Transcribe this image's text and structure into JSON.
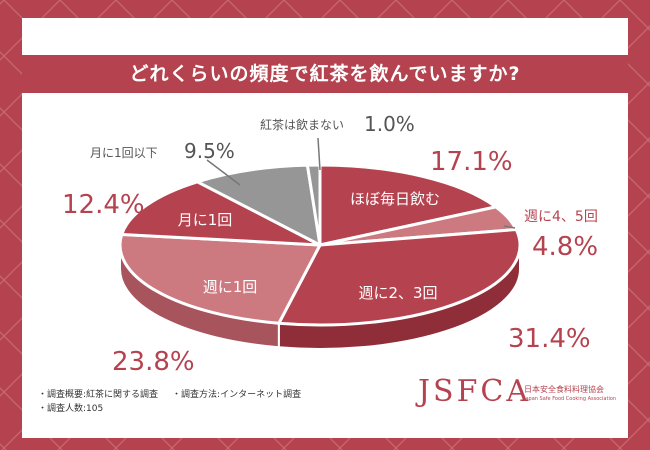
{
  "title": "どれくらいの頻度で紅茶を飲んでいますか?",
  "chart_data": {
    "type": "pie",
    "slices": [
      {
        "label": "ほぼ毎日飲む",
        "value": 17.1,
        "value_label": "17.1%",
        "color": "#b5434f"
      },
      {
        "label": "週に4、5回",
        "value": 4.8,
        "value_label": "4.8%",
        "color": "#cc7a80"
      },
      {
        "label": "週に2、3回",
        "value": 31.4,
        "value_label": "31.4%",
        "color": "#b5434f"
      },
      {
        "label": "週に1回",
        "value": 23.8,
        "value_label": "23.8%",
        "color": "#cc7a80"
      },
      {
        "label": "月に1回",
        "value": 12.4,
        "value_label": "12.4%",
        "color": "#b5434f"
      },
      {
        "label": "月に1回以下",
        "value": 9.5,
        "value_label": "9.5%",
        "color": "#969696"
      },
      {
        "label": "紅茶は飲まない",
        "value": 1.0,
        "value_label": "1.0%",
        "color": "#969696"
      }
    ]
  },
  "footer": {
    "overview": "・調査概要:紅茶に関する調査",
    "method": "・調査方法:インターネット調査",
    "count": "・調査人数:105"
  },
  "logo": {
    "name": "JSFCA",
    "ja": "日本安全食料料理協会",
    "en": "Japan Safe Food Cooking Association"
  }
}
